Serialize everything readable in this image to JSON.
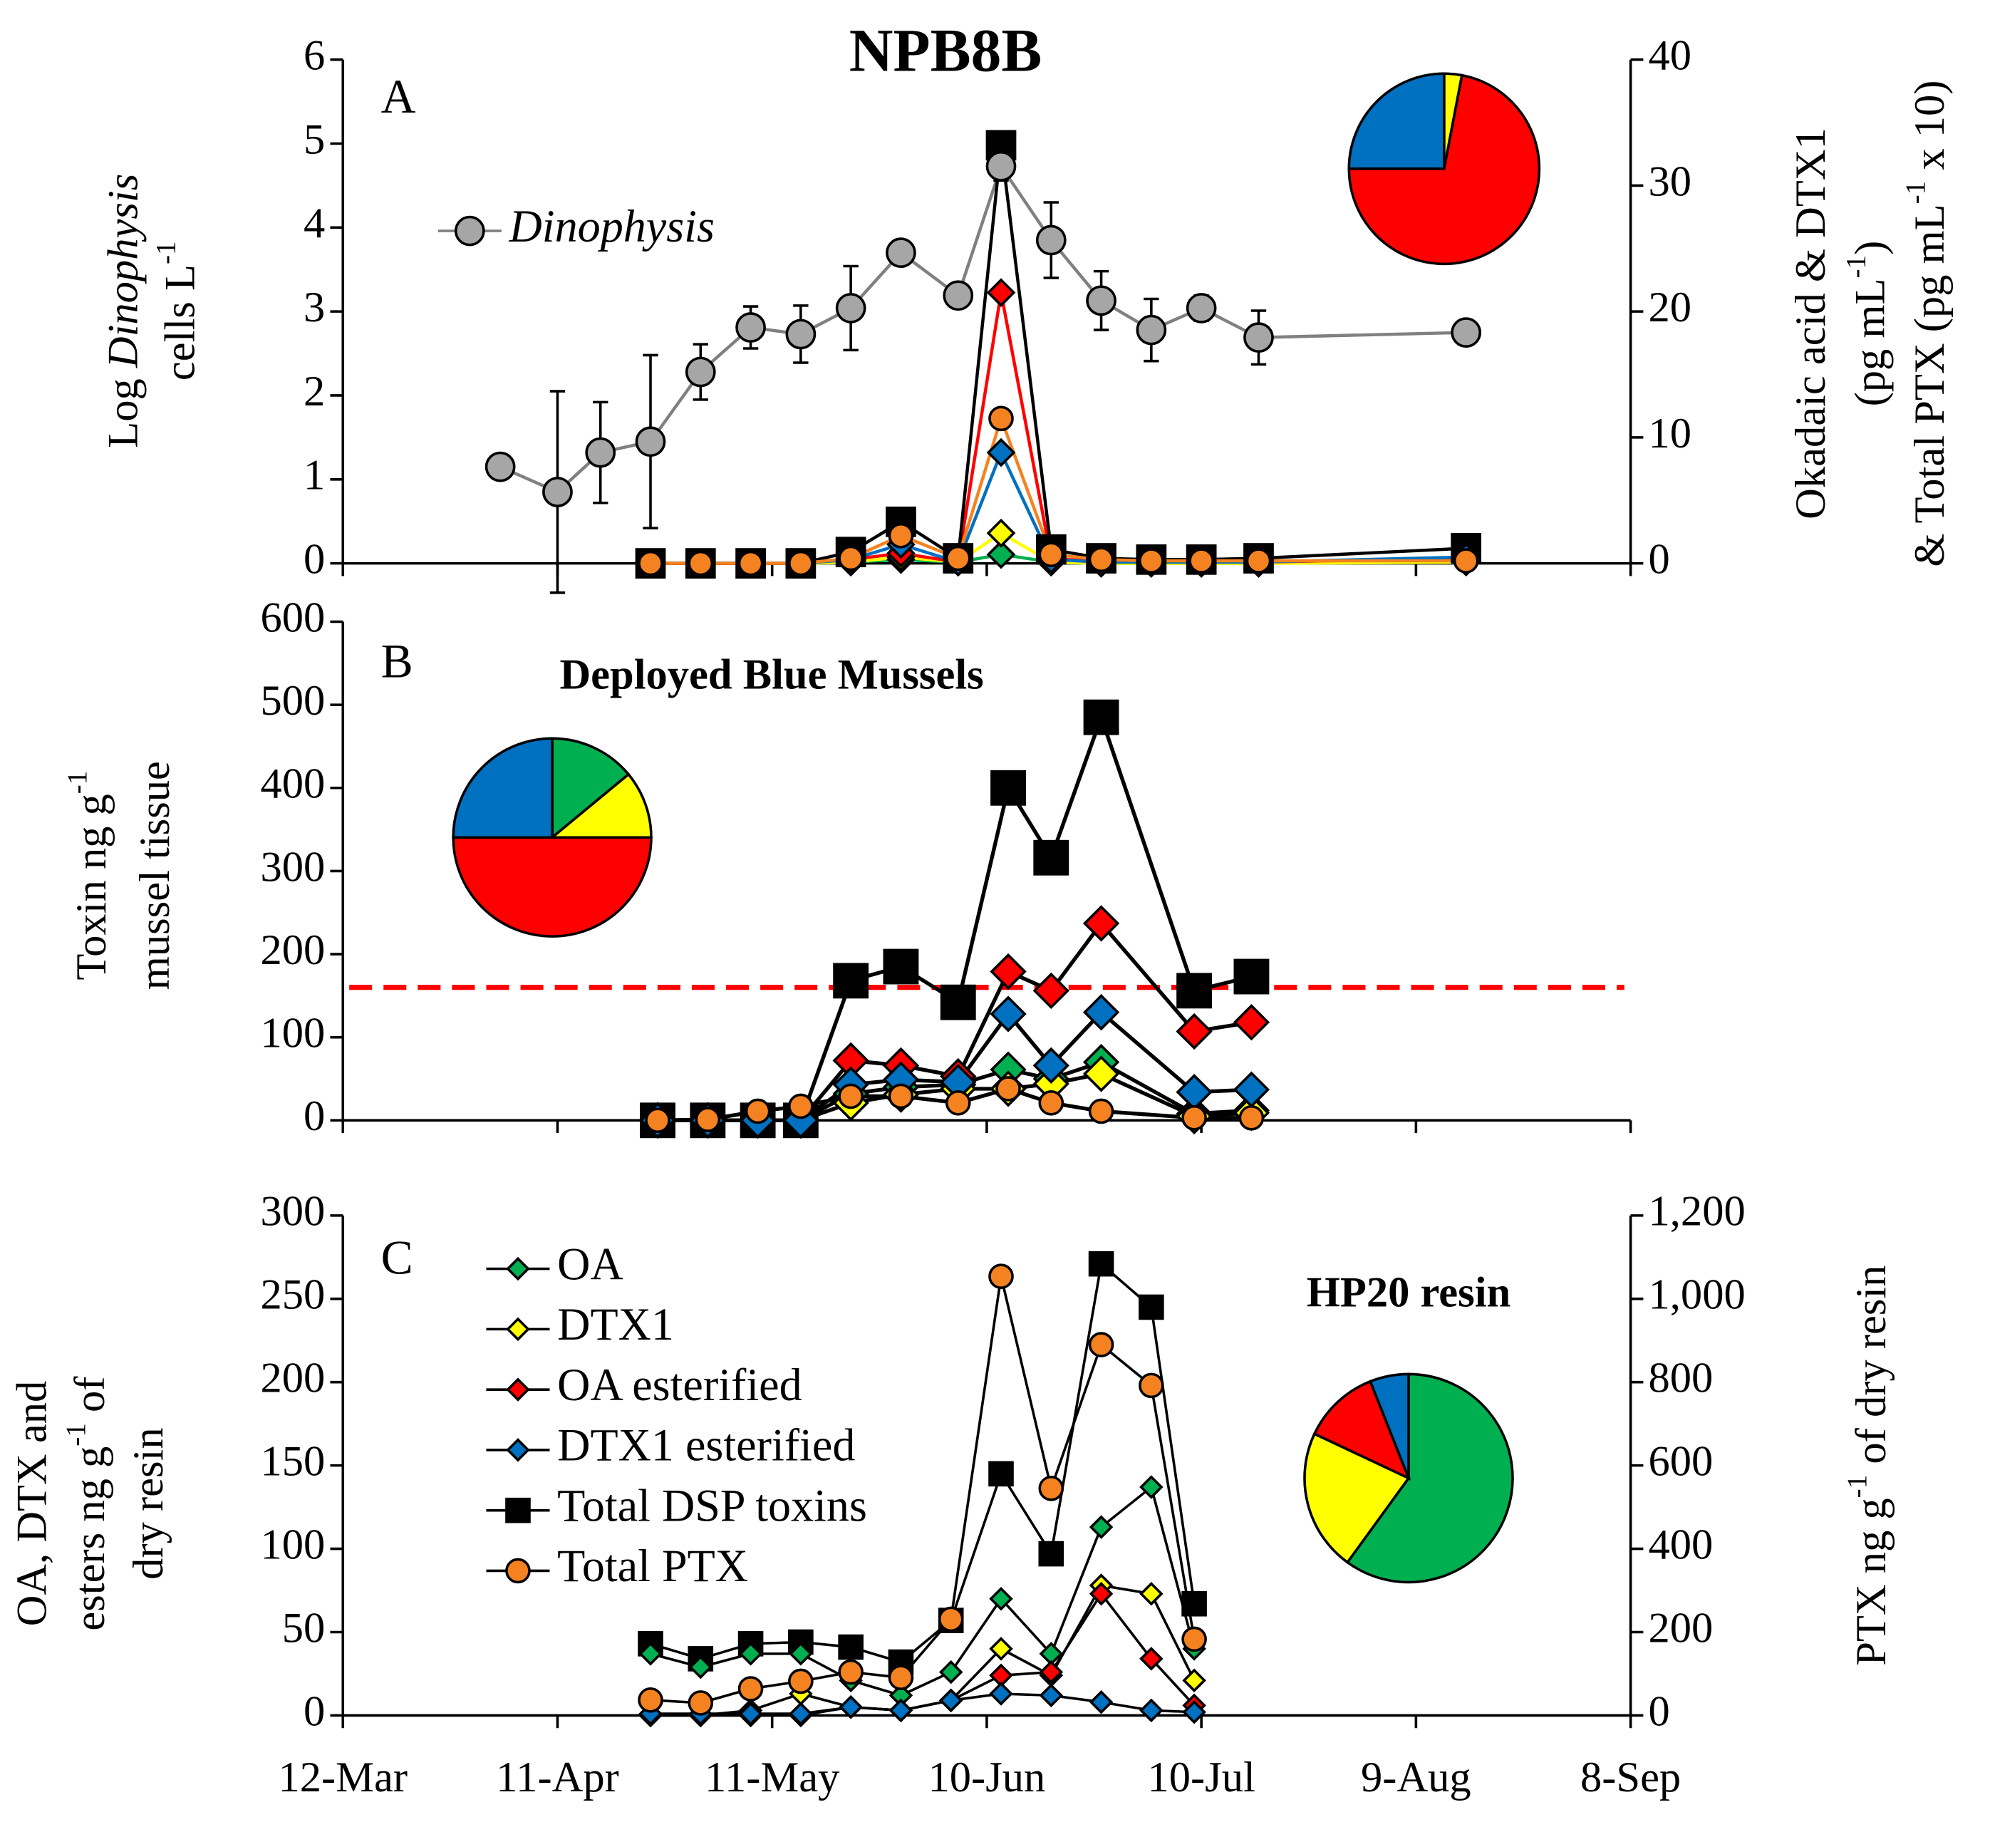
{
  "chart_data": [
    {
      "type": "line",
      "title": "NPB8B",
      "panel_label": "A",
      "ylabel": [
        [
          {
            "text": "Log "
          },
          {
            "text": "Dinophysis",
            "style": "italic"
          }
        ],
        [
          {
            "text": "cells L"
          },
          {
            "text": "-1",
            "style": "sup"
          }
        ]
      ],
      "y2label": [
        [
          {
            "text": "Okadaic acid & DTX1"
          }
        ],
        [
          {
            "text": "(pg mL"
          },
          {
            "text": "-1",
            "style": "sup"
          },
          {
            "text": ")"
          }
        ],
        [
          {
            "text": "& Total PTX (pg mL"
          },
          {
            "text": "-1",
            "style": "sup"
          },
          {
            "text": " x 10)"
          }
        ]
      ],
      "xlim": [
        "12-Mar",
        "8-Sep"
      ],
      "xticks": [
        "12-Mar",
        "11-Apr",
        "11-May",
        "10-Jun",
        "10-Jul",
        "9-Aug",
        "8-Sep"
      ],
      "show_xtick_labels": false,
      "ylim": [
        0,
        6
      ],
      "yticks": [
        0,
        1,
        2,
        3,
        4,
        5,
        6
      ],
      "y2lim": [
        0,
        40
      ],
      "y2ticks": [
        0,
        10,
        20,
        30,
        40
      ],
      "lines_colored": true,
      "x": [
        "3-Apr",
        "11-Apr",
        "17-Apr",
        "24-Apr",
        "1-May",
        "8-May",
        "15-May",
        "22-May",
        "29-May",
        "6-Jun",
        "12-Jun",
        "19-Jun",
        "26-Jun",
        "3-Jul",
        "10-Jul",
        "18-Jul",
        "16-Aug"
      ],
      "series": [
        {
          "name": "Dinophysis",
          "name_style": "italic",
          "color": "#a6a6a6",
          "line_color": "#808080",
          "marker": "circle",
          "values": [
            1.15,
            0.85,
            1.32,
            1.45,
            2.28,
            2.81,
            2.73,
            3.04,
            3.7,
            3.19,
            4.73,
            3.85,
            3.13,
            2.78,
            3.04,
            2.69,
            2.75
          ],
          "errors": [
            null,
            1.2,
            0.6,
            1.03,
            0.33,
            0.25,
            0.34,
            0.5,
            null,
            null,
            0.17,
            0.45,
            0.35,
            0.37,
            0.15,
            0.32,
            null
          ]
        },
        {
          "color": "#00b050",
          "marker": "diamond",
          "axis": "y2",
          "values": [
            null,
            null,
            null,
            0,
            0,
            0,
            0,
            0.1,
            0.3,
            0.1,
            0.7,
            0.1,
            0,
            0,
            0,
            0,
            0.2
          ]
        },
        {
          "color": "#ffff00",
          "marker": "diamond",
          "axis": "y2",
          "values": [
            null,
            null,
            null,
            0,
            0,
            0,
            0,
            0.1,
            0.5,
            0.1,
            2.4,
            0.1,
            0,
            0,
            0,
            0,
            0.1
          ]
        },
        {
          "color": "#ff0000",
          "marker": "diamond",
          "axis": "y2",
          "values": [
            null,
            null,
            null,
            0,
            0,
            0,
            0,
            0.3,
            0.8,
            0.1,
            21.5,
            0.4,
            0.1,
            0.1,
            0.1,
            0.1,
            0.4
          ]
        },
        {
          "color": "#0070c0",
          "marker": "diamond",
          "axis": "y2",
          "values": [
            null,
            null,
            null,
            0,
            0,
            0,
            0,
            0.3,
            1.5,
            0.1,
            8.8,
            0.3,
            0.1,
            0.1,
            0.1,
            0.1,
            0.5
          ]
        },
        {
          "color": "#000000",
          "marker": "square",
          "axis": "y2",
          "values": [
            null,
            null,
            null,
            0,
            0,
            0,
            0,
            0.9,
            3.3,
            0.4,
            33.2,
            1.1,
            0.4,
            0.3,
            0.3,
            0.4,
            1.2
          ]
        },
        {
          "color": "#f58220",
          "marker": "circle",
          "axis": "y2",
          "values": [
            null,
            null,
            null,
            0,
            0,
            0,
            0,
            0.4,
            2.2,
            0.4,
            11.5,
            0.7,
            0.3,
            0.2,
            0.2,
            0.2,
            0.2
          ]
        }
      ],
      "pie": {
        "values": [
          0,
          3,
          72,
          25
        ],
        "colors": [
          "#00b050",
          "#ffff00",
          "#ff0000",
          "#0070c0"
        ]
      }
    },
    {
      "type": "line",
      "panel_label": "B",
      "annotation": "Deployed Blue Mussels",
      "ylabel": [
        [
          {
            "text": "Toxin ng g"
          },
          {
            "text": "-1",
            "style": "sup"
          }
        ],
        [
          {
            "text": "mussel tissue"
          }
        ]
      ],
      "xlim": [
        "12-Mar",
        "8-Sep"
      ],
      "xticks": [
        "12-Mar",
        "11-Apr",
        "11-May",
        "10-Jun",
        "10-Jul",
        "9-Aug",
        "8-Sep"
      ],
      "show_xtick_labels": false,
      "ylim": [
        0,
        600
      ],
      "yticks": [
        0,
        100,
        200,
        300,
        400,
        500,
        600
      ],
      "lines_colored": false,
      "reference_line": {
        "value": 160,
        "color": "#ff0000",
        "dashed": true
      },
      "x": [
        "25-Apr",
        "2-May",
        "9-May",
        "15-May",
        "22-May",
        "29-May",
        "6-Jun",
        "13-Jun",
        "19-Jun",
        "26-Jun",
        "9-Jul",
        "17-Jul"
      ],
      "series": [
        {
          "color": "#00b050",
          "marker": "diamond",
          "values": [
            0,
            0,
            0,
            0,
            32,
            40,
            43,
            61,
            50,
            70,
            8,
            12
          ]
        },
        {
          "color": "#ffff00",
          "marker": "diamond",
          "values": [
            0,
            0,
            0,
            0,
            21,
            31,
            38,
            38,
            44,
            56,
            5,
            9
          ]
        },
        {
          "color": "#ff0000",
          "marker": "diamond",
          "values": [
            0,
            0,
            0,
            0,
            72,
            66,
            53,
            179,
            156,
            237,
            107,
            118
          ]
        },
        {
          "color": "#0070c0",
          "marker": "diamond",
          "values": [
            0,
            0,
            0,
            0,
            43,
            49,
            46,
            128,
            66,
            130,
            34,
            37
          ]
        },
        {
          "color": "#000000",
          "marker": "square",
          "values": [
            0,
            0,
            0,
            0,
            168,
            185,
            142,
            400,
            316,
            485,
            156,
            173
          ]
        },
        {
          "color": "#f58220",
          "marker": "circle",
          "values": [
            0,
            1,
            11,
            17,
            29,
            29,
            21,
            38,
            21,
            11,
            3,
            3
          ]
        }
      ],
      "pie": {
        "values": [
          14,
          11,
          50,
          25
        ],
        "colors": [
          "#00b050",
          "#ffff00",
          "#ff0000",
          "#0070c0"
        ]
      }
    },
    {
      "type": "line",
      "panel_label": "C",
      "annotation": "HP20 resin",
      "ylabel": [
        [
          {
            "text": "OA, DTX and"
          }
        ],
        [
          {
            "text": "esters ng g"
          },
          {
            "text": "-1",
            "style": "sup"
          },
          {
            "text": " of"
          }
        ],
        [
          {
            "text": "dry resin"
          }
        ]
      ],
      "y2label": [
        [
          {
            "text": "PTX ng g"
          },
          {
            "text": "-1",
            "style": "sup"
          },
          {
            "text": " of dry resin"
          }
        ]
      ],
      "xlim": [
        "12-Mar",
        "8-Sep"
      ],
      "xticks": [
        "12-Mar",
        "11-Apr",
        "11-May",
        "10-Jun",
        "10-Jul",
        "9-Aug",
        "8-Sep"
      ],
      "show_xtick_labels": true,
      "ylim": [
        0,
        300
      ],
      "yticks": [
        0,
        50,
        100,
        150,
        200,
        250,
        300
      ],
      "y2lim": [
        0,
        1200
      ],
      "y2ticks": [
        0,
        200,
        400,
        600,
        800,
        {
          "value": 1000,
          "label": "1,000"
        },
        {
          "value": 1200,
          "label": "1,200"
        }
      ],
      "lines_colored": false,
      "x": [
        "24-Apr",
        "1-May",
        "8-May",
        "15-May",
        "22-May",
        "29-May",
        "5-Jun",
        "12-Jun",
        "19-Jun",
        "26-Jun",
        "3-Jul",
        "9-Jul"
      ],
      "series": [
        {
          "name": "OA",
          "color": "#00b050",
          "marker": "diamond",
          "values": [
            37,
            29,
            37,
            37,
            21,
            12,
            26,
            70,
            37,
            113,
            137,
            40
          ]
        },
        {
          "name": "DTX1",
          "color": "#ffff00",
          "marker": "diamond",
          "values": [
            0,
            0,
            3,
            13,
            5,
            3,
            9,
            40,
            24,
            78,
            73,
            21
          ]
        },
        {
          "name": "OA esterified",
          "color": "#ff0000",
          "marker": "diamond",
          "values": [
            0,
            0,
            0,
            0,
            5,
            3,
            9,
            24,
            26,
            73,
            34,
            6
          ]
        },
        {
          "name": "DTX1 esterified",
          "color": "#0070c0",
          "marker": "diamond",
          "values": [
            1,
            1,
            1,
            1,
            5,
            3,
            9,
            13,
            12,
            8,
            3,
            2
          ]
        },
        {
          "name": "Total DSP toxins",
          "color": "#000000",
          "marker": "square",
          "values": [
            43,
            34,
            43,
            44,
            41,
            32,
            57,
            145,
            97,
            271,
            245,
            67
          ]
        },
        {
          "name": "Total PTX",
          "color": "#f58220",
          "marker": "circle",
          "axis": "y2",
          "values": [
            37,
            30,
            64,
            82,
            104,
            91,
            231,
            1054,
            545,
            890,
            792,
            183
          ]
        }
      ],
      "pie": {
        "values": [
          60,
          22,
          12,
          6
        ],
        "colors": [
          "#00b050",
          "#ffff00",
          "#ff0000",
          "#0070c0"
        ]
      }
    }
  ]
}
